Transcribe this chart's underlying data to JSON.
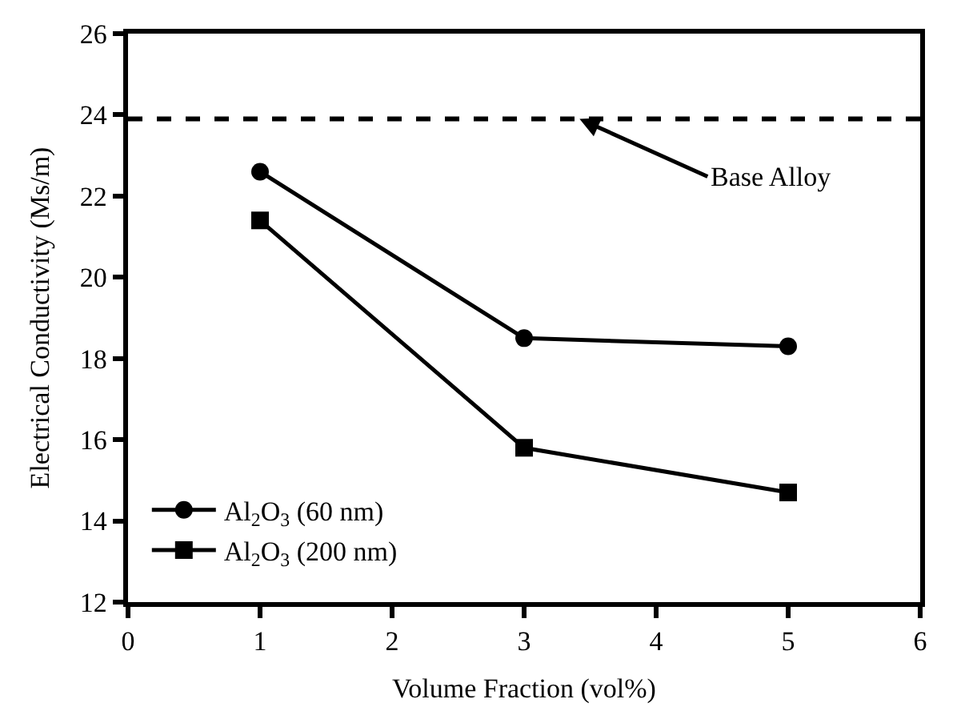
{
  "chart_data": {
    "type": "line",
    "xlabel": "Volume Fraction (vol%)",
    "ylabel": "Electrical Conductivity (Ms/m)",
    "x": [
      1,
      3,
      5
    ],
    "series": [
      {
        "name": "Al$_{2}$O$_{3}$ (60 nm)",
        "color": "#000000",
        "values": [
          22.6,
          18.5,
          18.3
        ],
        "marker": "circle"
      },
      {
        "name": "Al$_{2}$O$_{3}$ (200 nm)",
        "color": "#000000",
        "values": [
          21.4,
          15.8,
          14.7
        ],
        "marker": "square"
      }
    ],
    "ref_lines": [
      {
        "axis": "y",
        "value": 23.9,
        "label": "Base Alloy",
        "color": "#000000",
        "line_style": "dashed"
      }
    ],
    "xlim": [
      0,
      6
    ],
    "xticks": [
      0,
      1,
      2,
      3,
      4,
      5,
      6
    ],
    "ylim": [
      12,
      26
    ],
    "yticks": [
      12,
      14,
      16,
      18,
      20,
      22,
      24,
      26
    ],
    "legend": "bottom left",
    "line_style": "solid"
  }
}
